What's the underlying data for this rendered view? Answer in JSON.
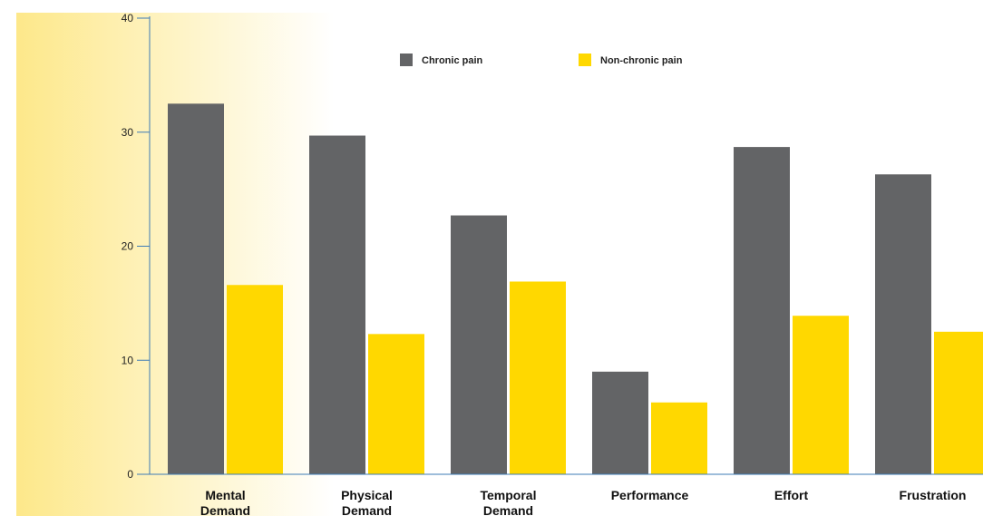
{
  "chart_data": {
    "type": "bar",
    "categories": [
      [
        "Mental",
        "Demand"
      ],
      [
        "Physical",
        "Demand"
      ],
      [
        "Temporal",
        "Demand"
      ],
      [
        "Performance"
      ],
      [
        "Effort"
      ],
      [
        "Frustration"
      ]
    ],
    "series": [
      {
        "name": "Chronic pain",
        "color": "#636466",
        "values": [
          32.5,
          29.7,
          22.7,
          9.0,
          28.7,
          26.3
        ]
      },
      {
        "name": "Non-chronic pain",
        "color": "#FFD800",
        "values": [
          16.6,
          12.3,
          16.9,
          6.3,
          13.9,
          12.5
        ]
      }
    ],
    "y_ticks": [
      0,
      10,
      20,
      30,
      40
    ],
    "ylim": [
      0,
      40
    ],
    "axis_color": "#3E7BB6",
    "background_gradient": [
      "#FDE88A",
      "#FFFFFF"
    ],
    "legend_placement": "top-center",
    "grid": false
  }
}
